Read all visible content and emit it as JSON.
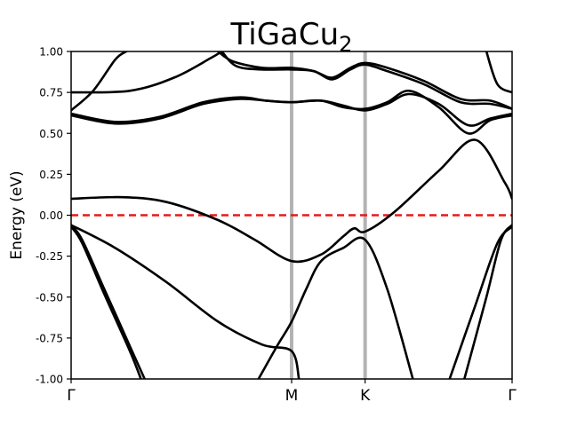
{
  "chart_data": {
    "type": "line",
    "title": "TiGaCu",
    "title_subscript": "2",
    "xlabel": "",
    "ylabel": "Energy (eV)",
    "ylim": [
      -1.0,
      1.0
    ],
    "xlim": [
      0,
      6.0
    ],
    "y_ticks": [
      "-1.00",
      "-0.75",
      "-0.50",
      "-0.25",
      "0.00",
      "0.25",
      "0.50",
      "0.75",
      "1.00"
    ],
    "x_ticks": [
      {
        "label": "Γ",
        "x": 0
      },
      {
        "label": "M",
        "x": 3.0
      },
      {
        "label": "K",
        "x": 4.0
      },
      {
        "label": "Γ",
        "x": 6.0
      }
    ],
    "high_symmetry_lines": [
      3.0,
      4.0
    ],
    "fermi_level": 0.0,
    "grid": false,
    "legend": "none",
    "colors": {
      "band": "#000000",
      "fermi": "#e81919",
      "symmetry": "#b3b3b3"
    },
    "series": [
      {
        "values": [
          [
            0,
            0.64
          ],
          [
            0.3,
            0.76
          ],
          [
            0.6,
            0.95
          ],
          [
            0.75,
            1.0
          ]
        ]
      },
      {
        "values": [
          [
            2.05,
            1.0
          ],
          [
            2.25,
            0.91
          ],
          [
            2.6,
            0.89
          ],
          [
            3.0,
            0.89
          ],
          [
            3.3,
            0.88
          ],
          [
            3.55,
            0.83
          ],
          [
            3.8,
            0.89
          ],
          [
            4.0,
            0.92
          ],
          [
            4.3,
            0.88
          ],
          [
            4.8,
            0.8
          ],
          [
            5.3,
            0.69
          ],
          [
            5.7,
            0.68
          ],
          [
            6.0,
            0.65
          ]
        ]
      },
      {
        "values": [
          [
            2.0,
            1.0
          ],
          [
            2.2,
            0.94
          ],
          [
            2.6,
            0.9
          ],
          [
            3.0,
            0.9
          ],
          [
            3.3,
            0.88
          ],
          [
            3.55,
            0.84
          ],
          [
            3.8,
            0.9
          ],
          [
            4.0,
            0.93
          ],
          [
            4.3,
            0.9
          ],
          [
            4.8,
            0.82
          ],
          [
            5.3,
            0.71
          ],
          [
            5.7,
            0.7
          ],
          [
            6.0,
            0.65
          ]
        ]
      },
      {
        "values": [
          [
            0,
            0.75
          ],
          [
            0.8,
            0.76
          ],
          [
            1.4,
            0.84
          ],
          [
            1.9,
            0.96
          ],
          [
            2.05,
            1.0
          ]
        ]
      },
      {
        "values": [
          [
            5.65,
            1.0
          ],
          [
            5.8,
            0.8
          ],
          [
            6.0,
            0.75
          ]
        ]
      },
      {
        "values": [
          [
            0,
            0.62
          ],
          [
            0.6,
            0.57
          ],
          [
            1.2,
            0.6
          ],
          [
            1.8,
            0.69
          ],
          [
            2.3,
            0.72
          ],
          [
            2.65,
            0.7
          ],
          [
            3.0,
            0.69
          ],
          [
            3.4,
            0.7
          ],
          [
            3.7,
            0.67
          ],
          [
            4.0,
            0.64
          ],
          [
            4.3,
            0.68
          ],
          [
            4.6,
            0.74
          ],
          [
            5.0,
            0.68
          ],
          [
            5.4,
            0.55
          ],
          [
            5.7,
            0.59
          ],
          [
            6.0,
            0.62
          ]
        ]
      },
      {
        "values": [
          [
            0,
            0.61
          ],
          [
            0.6,
            0.56
          ],
          [
            1.2,
            0.59
          ],
          [
            1.8,
            0.68
          ],
          [
            2.3,
            0.71
          ],
          [
            2.65,
            0.7
          ],
          [
            3.0,
            0.69
          ],
          [
            3.4,
            0.7
          ],
          [
            3.7,
            0.66
          ],
          [
            4.0,
            0.65
          ],
          [
            4.3,
            0.69
          ],
          [
            4.6,
            0.76
          ],
          [
            5.0,
            0.66
          ],
          [
            5.4,
            0.5
          ],
          [
            5.7,
            0.58
          ],
          [
            6.0,
            0.61
          ]
        ]
      },
      {
        "values": [
          [
            0,
            0.1
          ],
          [
            0.7,
            0.11
          ],
          [
            1.3,
            0.08
          ],
          [
            2.0,
            -0.03
          ],
          [
            2.5,
            -0.15
          ],
          [
            3.0,
            -0.28
          ],
          [
            3.4,
            -0.24
          ],
          [
            3.7,
            -0.13
          ],
          [
            3.85,
            -0.08
          ],
          [
            4.0,
            -0.1
          ],
          [
            4.4,
            0.02
          ],
          [
            5.0,
            0.27
          ],
          [
            5.5,
            0.46
          ],
          [
            5.9,
            0.2
          ],
          [
            6.0,
            0.1
          ]
        ]
      },
      {
        "values": [
          [
            0,
            -0.06
          ],
          [
            0.6,
            -0.2
          ],
          [
            1.3,
            -0.41
          ],
          [
            2.0,
            -0.65
          ],
          [
            2.6,
            -0.79
          ],
          [
            3.0,
            -0.83
          ],
          [
            3.1,
            -1.0
          ]
        ]
      },
      {
        "values": [
          [
            2.55,
            -1.0
          ],
          [
            2.8,
            -0.8
          ],
          [
            3.0,
            -0.65
          ],
          [
            3.2,
            -0.45
          ],
          [
            3.4,
            -0.28
          ],
          [
            3.7,
            -0.2
          ],
          [
            4.0,
            -0.15
          ],
          [
            4.3,
            -0.45
          ],
          [
            4.65,
            -1.0
          ]
        ]
      },
      {
        "values": [
          [
            0,
            -0.06
          ],
          [
            0.15,
            -0.15
          ],
          [
            0.45,
            -0.45
          ],
          [
            0.8,
            -0.8
          ],
          [
            1.0,
            -1.0
          ]
        ]
      },
      {
        "values": [
          [
            0,
            -0.07
          ],
          [
            0.15,
            -0.17
          ],
          [
            0.45,
            -0.48
          ],
          [
            0.8,
            -0.83
          ],
          [
            0.95,
            -1.0
          ]
        ]
      },
      {
        "values": [
          [
            5.15,
            -1.0
          ],
          [
            5.5,
            -0.55
          ],
          [
            5.8,
            -0.17
          ],
          [
            6.0,
            -0.07
          ]
        ]
      },
      {
        "values": [
          [
            5.35,
            -1.0
          ],
          [
            5.65,
            -0.5
          ],
          [
            5.85,
            -0.15
          ],
          [
            6.0,
            -0.06
          ]
        ]
      }
    ]
  }
}
